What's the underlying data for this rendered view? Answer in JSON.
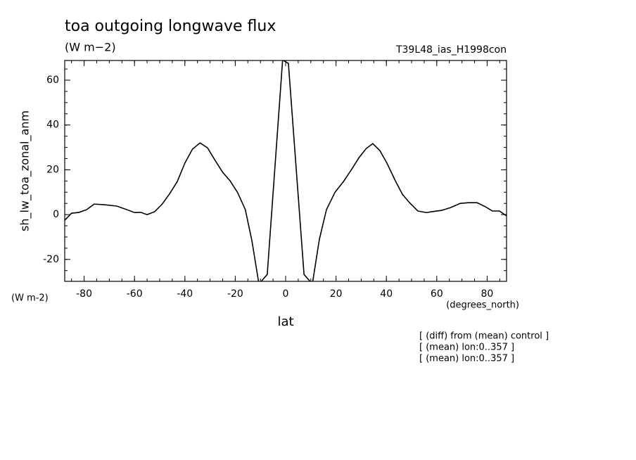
{
  "chart_data": {
    "type": "line",
    "title": "toa outgoing longwave flux",
    "subtitle": "(W m−2)",
    "run_label": "T39L48_ias_H1998con",
    "y_label": "sh_lw_toa_zonal_anm",
    "y_units": "(W m-2)",
    "x_units": "(degrees_north)",
    "x_label": "lat",
    "notes": [
      "[ (diff) from (mean) control ]",
      "[ (mean) lon:0..357 ]",
      "[ (mean) lon:0..357 ]"
    ],
    "xlim": [
      -87.7,
      87.7
    ],
    "ylim": [
      -29.8,
      68.8
    ],
    "xticks": [
      -80,
      -60,
      -40,
      -20,
      0,
      20,
      40,
      60,
      80
    ],
    "yticks": [
      -20,
      0,
      20,
      40,
      60
    ],
    "series": [
      {
        "color": "#000000",
        "x": [
          -87.7,
          -85,
          -82,
          -79,
          -76,
          -72,
          -67,
          -63,
          -60,
          -57.5,
          -55,
          -52,
          -49,
          -46,
          -43,
          -40,
          -37,
          -34,
          -31,
          -28,
          -25,
          -22,
          -19,
          -16,
          -13.4,
          -10.6,
          -7.3,
          -1.2,
          1.1,
          7.3,
          10.6,
          13.4,
          16.2,
          19.6,
          23,
          26.3,
          29.1,
          32,
          34.6,
          37.4,
          40.2,
          43.6,
          46.4,
          49.2,
          52.5,
          55.9,
          58.1,
          62,
          65.4,
          69.3,
          72.6,
          76,
          79.3,
          82.1,
          84.9,
          87.7
        ],
        "values": [
          -2.5,
          0.6,
          1,
          2.2,
          4.7,
          4.4,
          3.8,
          2.2,
          0.9,
          1,
          0,
          1.3,
          4.7,
          9.4,
          14.8,
          23,
          29.2,
          32,
          29.8,
          24.2,
          18.9,
          15,
          9.7,
          2.2,
          -11.6,
          -31,
          -26.7,
          69,
          67.5,
          -26.7,
          -31,
          -11,
          2.2,
          10,
          14.8,
          20.4,
          25.4,
          29.5,
          31.7,
          28.6,
          23,
          15,
          9,
          5.3,
          1.6,
          0.9,
          1.3,
          1.9,
          3.1,
          5,
          5.3,
          5.3,
          3.5,
          1.6,
          1.6,
          -0.6
        ]
      }
    ]
  }
}
